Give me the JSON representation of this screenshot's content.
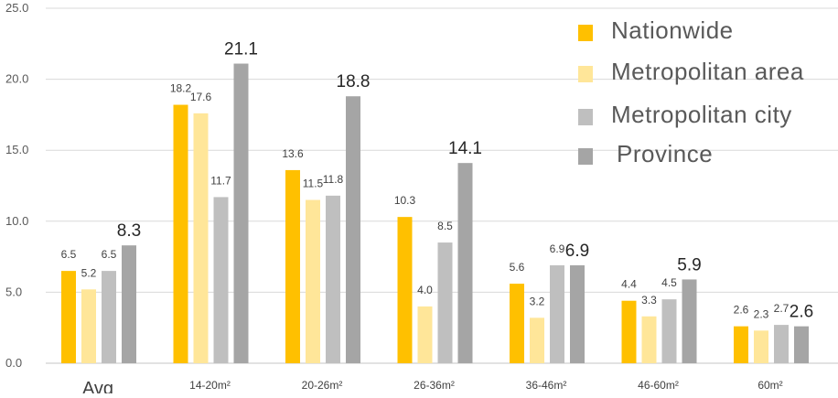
{
  "chart_data": {
    "type": "bar",
    "categories": [
      "Avg",
      "14-20m²",
      "20-26m²",
      "26-36m²",
      "36-46m²",
      "46-60m²",
      "60m²"
    ],
    "series": [
      {
        "name": "Nationwide",
        "color": "#FFC000",
        "values": [
          6.5,
          18.2,
          13.6,
          10.3,
          5.6,
          4.4,
          2.6
        ],
        "value_labels": [
          "6.5",
          "18.2",
          "13.6",
          "10.3",
          "5.6",
          "4.4",
          "2.6"
        ]
      },
      {
        "name": "Metropolitan area",
        "color": "#FFE699",
        "values": [
          5.2,
          17.6,
          11.5,
          4.0,
          3.2,
          3.3,
          2.3
        ],
        "value_labels": [
          "5.2",
          "17.6",
          "11.5",
          "4.0",
          "3.2",
          "3.3",
          "2.3"
        ]
      },
      {
        "name": "Metropolitan city",
        "color": "#BFBFBF",
        "values": [
          6.5,
          11.7,
          11.8,
          8.5,
          6.9,
          4.5,
          2.7
        ],
        "value_labels": [
          "6.5",
          "11.7",
          "11.8",
          "8.5",
          "6.9",
          "4.5",
          "2.7"
        ]
      },
      {
        "name": "Province",
        "color": "#A5A5A5",
        "values": [
          8.3,
          21.1,
          18.8,
          14.1,
          6.9,
          5.9,
          2.6
        ],
        "value_labels": [
          "8.3",
          "21.1",
          "18.8",
          "14.1",
          "6.9",
          "5.9",
          "2.6"
        ]
      }
    ],
    "y_ticks": [
      "0.0",
      "5.0",
      "10.0",
      "15.0",
      "20.0",
      "25.0"
    ],
    "ylim": [
      0,
      25
    ],
    "title": "",
    "xlabel": "",
    "ylabel": "",
    "grid": true,
    "legend_position": "top-right"
  }
}
